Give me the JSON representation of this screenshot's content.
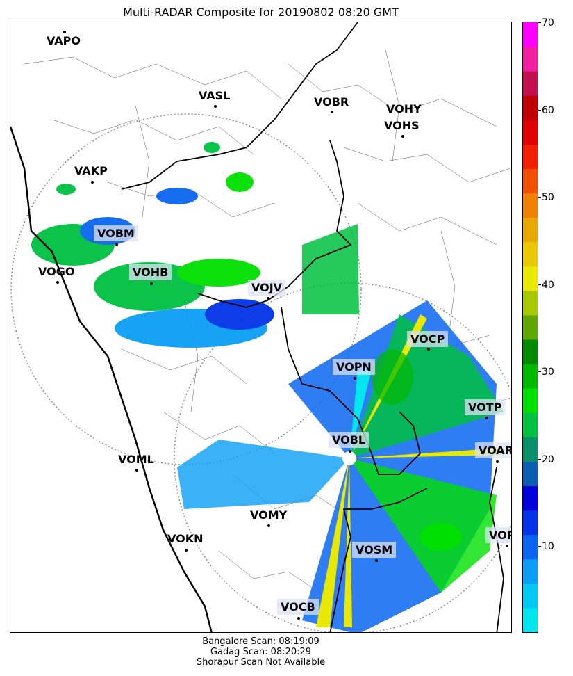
{
  "title": "Multi-RADAR Composite for 20190802 08:20 GMT",
  "colorbar": {
    "min": 0,
    "max": 70,
    "ticks": [
      "10",
      "20",
      "30",
      "40",
      "50",
      "60",
      "70"
    ],
    "colors": [
      "#00e5ee",
      "#00c8f5",
      "#0a9ff5",
      "#0a66f0",
      "#0033e8",
      "#0000d8",
      "#0a5fb0",
      "#0a8f6a",
      "#00c040",
      "#00e000",
      "#00b800",
      "#008a00",
      "#60a800",
      "#a8c800",
      "#e8e800",
      "#e8c800",
      "#e8a800",
      "#f08000",
      "#f05000",
      "#f02000",
      "#e00000",
      "#c00000",
      "#c01050",
      "#f020a0",
      "#ff00ff"
    ]
  },
  "footer": {
    "line1": "Bangalore Scan: 08:19:09",
    "line2": "Gadag Scan: 08:20:29",
    "line3": "Shorapur Scan Not Available"
  },
  "stations": [
    {
      "code": "VAPO",
      "boxed": false
    },
    {
      "code": "VASL",
      "boxed": false
    },
    {
      "code": "VOBR",
      "boxed": false
    },
    {
      "code": "VOHY",
      "boxed": false
    },
    {
      "code": "VOHS",
      "boxed": false
    },
    {
      "code": "VAKP",
      "boxed": false
    },
    {
      "code": "VOBM",
      "boxed": true
    },
    {
      "code": "VOGO",
      "boxed": false
    },
    {
      "code": "VOHB",
      "boxed": true
    },
    {
      "code": "VOJV",
      "boxed": true
    },
    {
      "code": "VOCP",
      "boxed": true
    },
    {
      "code": "VOPN",
      "boxed": true
    },
    {
      "code": "VOTP",
      "boxed": true
    },
    {
      "code": "VOBL",
      "boxed": true
    },
    {
      "code": "VOAR",
      "boxed": true
    },
    {
      "code": "VOML",
      "boxed": false
    },
    {
      "code": "VOMY",
      "boxed": false
    },
    {
      "code": "VOKN",
      "boxed": false
    },
    {
      "code": "VOPC",
      "boxed": true
    },
    {
      "code": "VOSM",
      "boxed": true
    },
    {
      "code": "VOCB",
      "boxed": true
    }
  ]
}
